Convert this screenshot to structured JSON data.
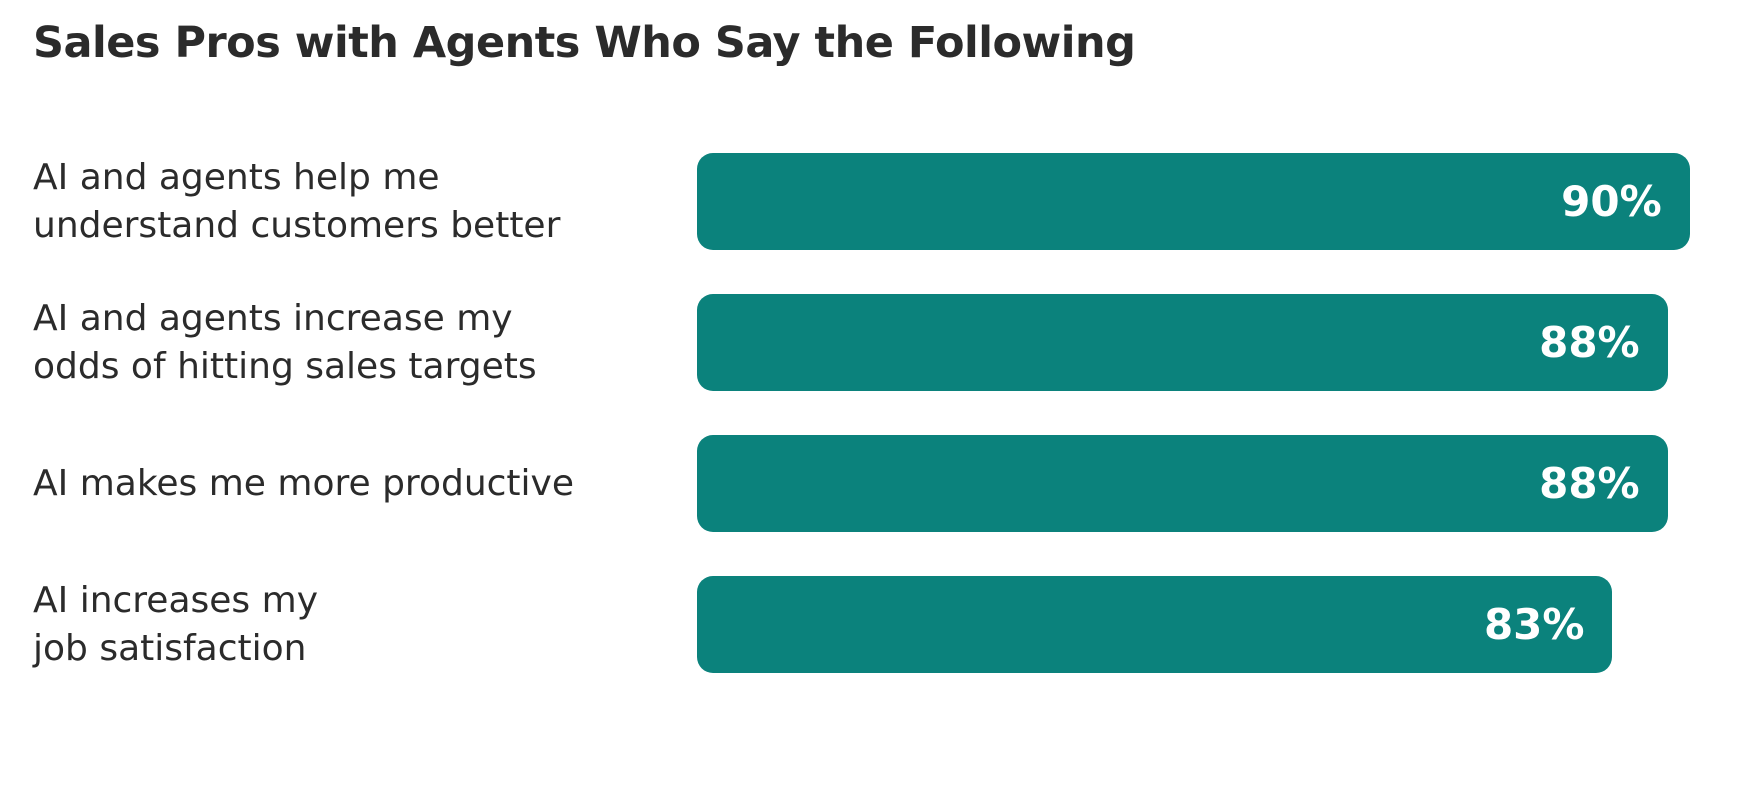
{
  "chart_data": {
    "type": "bar",
    "orientation": "horizontal",
    "title": "Sales Pros with Agents Who Say the Following",
    "categories": [
      "AI and agents help me\nunderstand customers better",
      "AI and agents increase my\nodds of hitting sales targets",
      "AI makes me more productive",
      "AI increases my\njob satisfaction"
    ],
    "values": [
      90,
      88,
      88,
      83
    ],
    "value_labels": [
      "90%",
      "88%",
      "88%",
      "83%"
    ],
    "color": "#0b827c",
    "xlim": [
      0,
      100
    ]
  }
}
